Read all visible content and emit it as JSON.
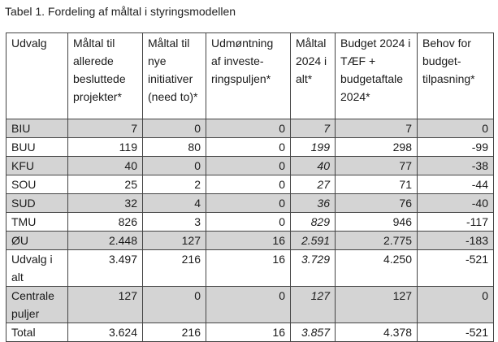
{
  "caption": "Tabel 1. Fordeling af måltal i styringsmodellen",
  "headers": [
    "Udvalg",
    "Måltal til allerede besluttede projekter*",
    "Måltal til nye initiativer (need to)*",
    "Udmøntning af investe-ringspuljen*",
    "Måltal 2024 i alt*",
    "Budget 2024 i TÆF + budgetaftale 2024*",
    "Behov for budget-tilpasning*"
  ],
  "rows": [
    {
      "cells": [
        "BIU",
        "7",
        "0",
        "0",
        "7",
        "7",
        "0"
      ],
      "shaded": true
    },
    {
      "cells": [
        "BUU",
        "119",
        "80",
        "0",
        "199",
        "298",
        "-99"
      ],
      "shaded": false
    },
    {
      "cells": [
        "KFU",
        "40",
        "0",
        "0",
        "40",
        "77",
        "-38"
      ],
      "shaded": true
    },
    {
      "cells": [
        "SOU",
        "25",
        "2",
        "0",
        "27",
        "71",
        "-44"
      ],
      "shaded": false
    },
    {
      "cells": [
        "SUD",
        "32",
        "4",
        "0",
        "36",
        "76",
        "-40"
      ],
      "shaded": true
    },
    {
      "cells": [
        "TMU",
        "826",
        "3",
        "0",
        "829",
        "946",
        "-117"
      ],
      "shaded": false
    },
    {
      "cells": [
        "ØU",
        "2.448",
        "127",
        "16",
        "2.591",
        "2.775",
        "-183"
      ],
      "shaded": true
    },
    {
      "cells": [
        "Udvalg i alt",
        "3.497",
        "216",
        "16",
        "3.729",
        "4.250",
        "-521"
      ],
      "shaded": false
    },
    {
      "cells": [
        "Centrale puljer",
        "127",
        "0",
        "0",
        "127",
        "127",
        "0"
      ],
      "shaded": true
    },
    {
      "cells": [
        "Total",
        "3.624",
        "216",
        "16",
        "3.857",
        "4.378",
        "-521"
      ],
      "shaded": false
    }
  ]
}
